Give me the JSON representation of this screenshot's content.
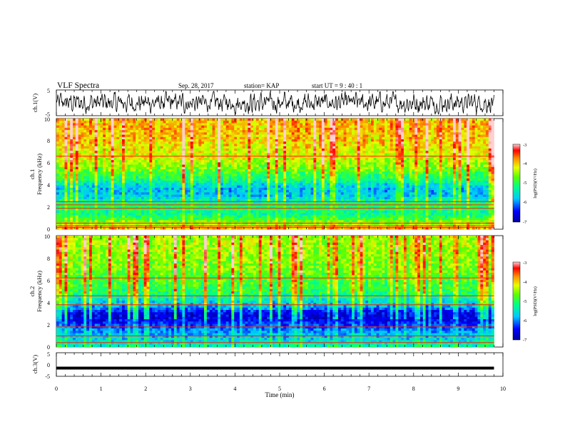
{
  "header": {
    "title": "VLF Spectra",
    "date": "Sep. 28, 2017",
    "station": "station= KAP",
    "start": "start  UT =   9 : 40 : 1"
  },
  "chart_data": [
    {
      "type": "line",
      "panel": "ch1_waveform",
      "ylabel": "ch.1(V)",
      "ylim": [
        -5,
        5
      ],
      "yticks": [
        "5",
        "-5"
      ],
      "xlim": [
        0,
        10
      ],
      "series_color": "#000000",
      "description_values": "noisy voltage trace roughly between -3 and 4 V across 0-9.8 min"
    },
    {
      "type": "heatmap",
      "panel": "ch1_spectrogram",
      "ylabel_top": "ch.1",
      "ylabel": "Frequency (kHz)",
      "ylim": [
        0,
        10
      ],
      "yticks": [
        "0",
        "2",
        "4",
        "6",
        "8",
        "10"
      ],
      "xlim": [
        0,
        10
      ],
      "data_end_min": 9.8,
      "colorbar": {
        "label": "log(PSD)(V²/Hz)",
        "ticks": [
          "-3",
          "-4",
          "-5",
          "-6",
          "-7"
        ],
        "range": [
          -7,
          -3
        ]
      },
      "level_profile": [
        {
          "f": 0.0,
          "v": -3.8
        },
        {
          "f": 0.6,
          "v": -4.6
        },
        {
          "f": 1.0,
          "v": -5.0
        },
        {
          "f": 1.5,
          "v": -5.3
        },
        {
          "f": 2.0,
          "v": -5.0
        },
        {
          "f": 2.5,
          "v": -5.3
        },
        {
          "f": 3.0,
          "v": -5.7
        },
        {
          "f": 3.5,
          "v": -5.8
        },
        {
          "f": 4.0,
          "v": -5.6
        },
        {
          "f": 4.5,
          "v": -5.1
        },
        {
          "f": 5.0,
          "v": -4.9
        },
        {
          "f": 5.5,
          "v": -4.6
        },
        {
          "f": 6.0,
          "v": -4.4
        },
        {
          "f": 6.5,
          "v": -4.2
        },
        {
          "f": 7.0,
          "v": -4.2
        },
        {
          "f": 8.0,
          "v": -4.0
        },
        {
          "f": 9.0,
          "v": -3.9
        },
        {
          "f": 10.0,
          "v": -3.9
        }
      ],
      "lines_kHz": [
        0.15,
        0.3,
        0.55,
        1.9,
        2.2,
        2.5,
        6.6
      ]
    },
    {
      "type": "heatmap",
      "panel": "ch2_spectrogram",
      "ylabel_top": "ch.2",
      "ylabel": "Frequency (kHz)",
      "ylim": [
        0,
        10
      ],
      "yticks": [
        "0",
        "2",
        "4",
        "6",
        "8",
        "10"
      ],
      "xlim": [
        0,
        10
      ],
      "data_end_min": 9.8,
      "colorbar": {
        "label": "log(PSD)(V²/Hz)",
        "ticks": [
          "-3",
          "-4",
          "-5",
          "-6",
          "-7"
        ],
        "range": [
          -7,
          -3
        ]
      },
      "level_profile": [
        {
          "f": 0.0,
          "v": -5.3
        },
        {
          "f": 0.5,
          "v": -5.6
        },
        {
          "f": 1.0,
          "v": -5.8
        },
        {
          "f": 1.5,
          "v": -6.0
        },
        {
          "f": 2.0,
          "v": -6.3
        },
        {
          "f": 2.5,
          "v": -6.6
        },
        {
          "f": 3.0,
          "v": -6.6
        },
        {
          "f": 3.5,
          "v": -6.0
        },
        {
          "f": 4.0,
          "v": -5.6
        },
        {
          "f": 4.5,
          "v": -5.3
        },
        {
          "f": 5.0,
          "v": -5.0
        },
        {
          "f": 6.0,
          "v": -4.8
        },
        {
          "f": 7.0,
          "v": -4.6
        },
        {
          "f": 8.0,
          "v": -4.5
        },
        {
          "f": 9.0,
          "v": -4.4
        },
        {
          "f": 10.0,
          "v": -4.4
        }
      ],
      "lines_kHz": [
        0.4,
        1.0,
        1.8,
        3.8,
        4.6,
        6.2
      ]
    },
    {
      "type": "line",
      "panel": "ch3_waveform",
      "ylabel": "ch.3(V)",
      "ylim": [
        -5,
        5
      ],
      "yticks": [
        "5",
        "0",
        "-5"
      ],
      "xlim": [
        0,
        10
      ],
      "constant_value": -1.5,
      "series_color": "#000000"
    }
  ],
  "x_axis": {
    "label": "Time (min)",
    "ticks": [
      "0",
      "1",
      "2",
      "3",
      "4",
      "5",
      "6",
      "7",
      "8",
      "9",
      "10"
    ]
  }
}
